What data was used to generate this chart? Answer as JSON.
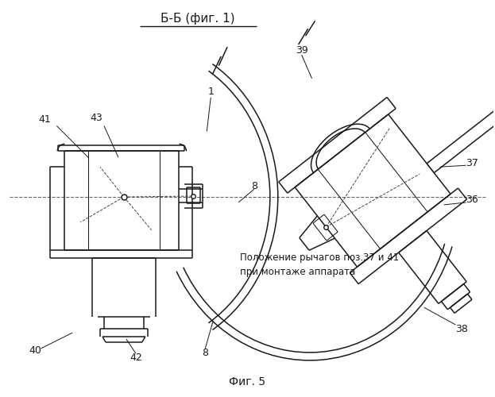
{
  "title": "Б-Б (фиг. 1)",
  "subtitle": "Фиг. 5",
  "bg_color": "#ffffff",
  "line_color": "#000000",
  "fig_width": 6.23,
  "fig_height": 5.0,
  "dpi": 100,
  "note_text": "Положение рычагов поз.37 и 41\nпри монтаже аппарата"
}
